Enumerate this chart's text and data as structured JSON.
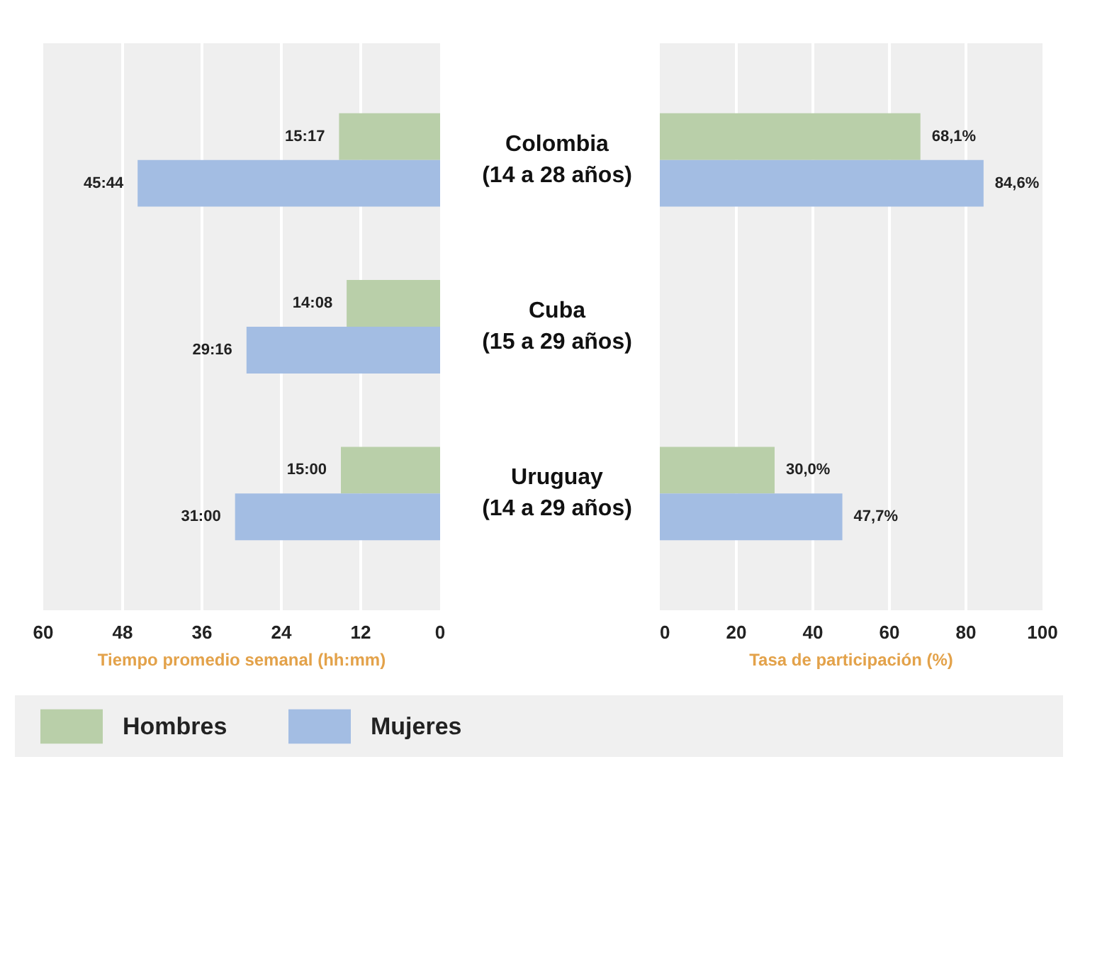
{
  "chart_data": [
    {
      "type": "bar",
      "orientation": "horizontal",
      "categories": [
        "Colombia\n(14 a 28 años)",
        "Cuba\n(15 a 29 años)",
        "Uruguay\n(14 a 29 años)"
      ],
      "xlabel": "Tiempo promedio semanal (hh:mm)",
      "xlim": [
        60,
        0
      ],
      "xticks": [
        60,
        48,
        36,
        24,
        12,
        0
      ],
      "grid": "x",
      "legend": "bottom",
      "series": [
        {
          "name": "Hombres",
          "color": "#b9cfa9",
          "values": [
            15.28,
            14.13,
            15
          ],
          "value_labels": [
            "15:17",
            "14:08",
            "15:00"
          ]
        },
        {
          "name": "Mujeres",
          "color": "#a3bde3",
          "values": [
            45.73,
            29.27,
            31
          ],
          "value_labels": [
            "45:44",
            "29:16",
            "31:00"
          ]
        }
      ]
    },
    {
      "type": "bar",
      "orientation": "horizontal",
      "categories": [
        null,
        null,
        null
      ],
      "xlabel": "Tasa de participación (%)",
      "xlim": [
        0,
        100
      ],
      "xticks": [
        0,
        20,
        40,
        60,
        80,
        100
      ],
      "grid": "x",
      "tick_labels": "x",
      "series": [
        {
          "color": "#b9cfa9",
          "values": [
            68.1,
            null,
            30.0
          ],
          "value_labels": [
            "68,1%",
            null,
            "30,0%"
          ]
        },
        {
          "color": "#a3bde3",
          "values": [
            84.6,
            null,
            47.7
          ],
          "value_labels": [
            "84,6%",
            null,
            "47,7%"
          ]
        }
      ]
    }
  ]
}
